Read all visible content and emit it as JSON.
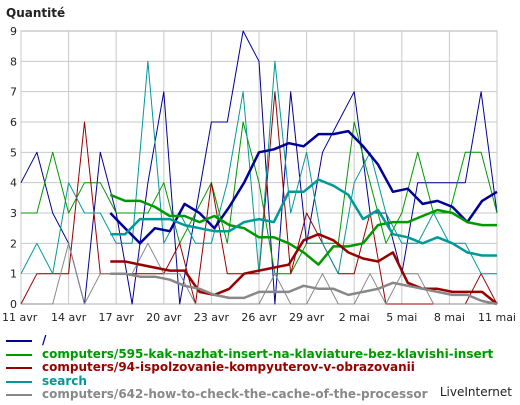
{
  "chart_data": {
    "type": "line",
    "title": "Quantité",
    "ylim": [
      0,
      9
    ],
    "y_ticks": [
      "0",
      "1",
      "2",
      "3",
      "4",
      "5",
      "6",
      "7",
      "8",
      "9"
    ],
    "x_ticks": [
      "11 avr",
      "14 avr",
      "17 avr",
      "20 avr",
      "23 avr",
      "26 avr",
      "29 avr",
      "2 mai",
      "5 mai",
      "8 mai",
      "11 mai"
    ],
    "x_tick_index": [
      0,
      3,
      6,
      9,
      12,
      15,
      18,
      21,
      24,
      27,
      30
    ],
    "grid": true,
    "series": [
      {
        "name": "/",
        "color": "#000099",
        "width": 1,
        "values": [
          4,
          5,
          3,
          2,
          0,
          5,
          3,
          0,
          4,
          7,
          0,
          3,
          6,
          6,
          9,
          8,
          0,
          7,
          2,
          5,
          6,
          7,
          3,
          3,
          1,
          4,
          4,
          4,
          4,
          7,
          3
        ]
      },
      {
        "name": "computers/595-kak-nazhat-insert-na-klaviature-bez-klavishi-insert",
        "color": "#009900",
        "width": 1,
        "values": [
          3,
          3,
          5,
          3,
          4,
          4,
          3,
          3,
          3,
          4,
          2,
          3,
          4,
          2,
          6,
          4,
          1,
          1,
          2,
          2,
          2,
          6,
          4,
          2,
          3,
          5,
          3,
          3,
          5,
          5,
          3
        ]
      },
      {
        "name": "computers/94-ispolzovanie-kompyuterov-v-obrazovanii",
        "color": "#990000",
        "width": 1,
        "values": [
          0,
          1,
          1,
          1,
          6,
          1,
          1,
          1,
          1,
          1,
          2,
          0,
          4,
          1,
          1,
          1,
          7,
          1,
          3,
          2,
          1,
          1,
          3,
          0,
          0,
          0,
          0,
          0,
          0,
          1,
          0
        ]
      },
      {
        "name": "search",
        "color": "#009999",
        "width": 1,
        "values": [
          1,
          2,
          1,
          4,
          3,
          3,
          2,
          2,
          8,
          2,
          3,
          2,
          2,
          4,
          7,
          1,
          8,
          3,
          5,
          2,
          1,
          4,
          5,
          3,
          2,
          2,
          3,
          2,
          2,
          1,
          1
        ]
      },
      {
        "name": "computers/642-how-to-check-the-cache-of-the-processor",
        "color": "#888888",
        "width": 1,
        "values": [
          0,
          0,
          0,
          2,
          0,
          1,
          1,
          1,
          2,
          1,
          1,
          0,
          0,
          0,
          0,
          0,
          1,
          0,
          0,
          1,
          0,
          0,
          1,
          0,
          1,
          1,
          0,
          0,
          0,
          0,
          0
        ]
      },
      {
        "name": "",
        "color": "#000099",
        "width": 2.5,
        "values": [
          null,
          null,
          null,
          null,
          null,
          null,
          3,
          2.5,
          2,
          2.5,
          2.4,
          3.3,
          3,
          2.5,
          3.2,
          4,
          5,
          5.1,
          5.3,
          5.2,
          5.6,
          5.6,
          5.7,
          5.2,
          4.6,
          3.7,
          3.8,
          3.3,
          3.4,
          3.2,
          2.7,
          3.4,
          3.7
        ]
      },
      {
        "name": "",
        "color": "#009900",
        "width": 2.5,
        "values": [
          null,
          null,
          null,
          null,
          null,
          null,
          3.6,
          3.4,
          3.4,
          3.2,
          2.9,
          2.9,
          2.7,
          2.9,
          2.6,
          2.5,
          2.2,
          2.2,
          2.0,
          1.7,
          1.3,
          1.9,
          1.9,
          2.0,
          2.6,
          2.7,
          2.7,
          2.9,
          3.1,
          3.0,
          2.7,
          2.6,
          2.6
        ]
      },
      {
        "name": "",
        "color": "#990000",
        "width": 2.5,
        "values": [
          null,
          null,
          null,
          null,
          null,
          null,
          1.4,
          1.4,
          1.3,
          1.2,
          1.1,
          1.1,
          0.4,
          0.3,
          0.5,
          1.0,
          1.1,
          1.2,
          1.3,
          2.1,
          2.3,
          2.1,
          1.7,
          1.5,
          1.4,
          1.7,
          0.7,
          0.5,
          0.5,
          0.4,
          0.4,
          0.4,
          0.0
        ]
      },
      {
        "name": "",
        "color": "#009999",
        "width": 2.5,
        "values": [
          null,
          null,
          null,
          null,
          null,
          null,
          2.3,
          2.3,
          2.8,
          2.8,
          2.8,
          2.6,
          2.5,
          2.4,
          2.4,
          2.7,
          2.8,
          2.7,
          3.7,
          3.7,
          4.1,
          3.9,
          3.6,
          2.8,
          3.1,
          2.3,
          2.2,
          2.0,
          2.2,
          2.0,
          1.7,
          1.6,
          1.6
        ]
      },
      {
        "name": "",
        "color": "#888888",
        "width": 2.5,
        "values": [
          null,
          null,
          null,
          null,
          null,
          null,
          1.0,
          1.0,
          0.9,
          0.9,
          0.8,
          0.6,
          0.5,
          0.3,
          0.2,
          0.2,
          0.4,
          0.4,
          0.4,
          0.6,
          0.5,
          0.5,
          0.3,
          0.4,
          0.5,
          0.7,
          0.6,
          0.5,
          0.4,
          0.3,
          0.3,
          0.1,
          0.0
        ]
      }
    ],
    "legend": [
      {
        "label": "/",
        "color": "#000099"
      },
      {
        "label": "computers/595-kak-nazhat-insert-na-klaviature-bez-klavishi-insert",
        "color": "#009900"
      },
      {
        "label": "computers/94-ispolzovanie-kompyuterov-v-obrazovanii",
        "color": "#990000"
      },
      {
        "label": "search",
        "color": "#009999"
      },
      {
        "label": "computers/642-how-to-check-the-cache-of-the-processor",
        "color": "#888888"
      }
    ],
    "legend_position": "bottom"
  },
  "brand": "LiveInternet"
}
